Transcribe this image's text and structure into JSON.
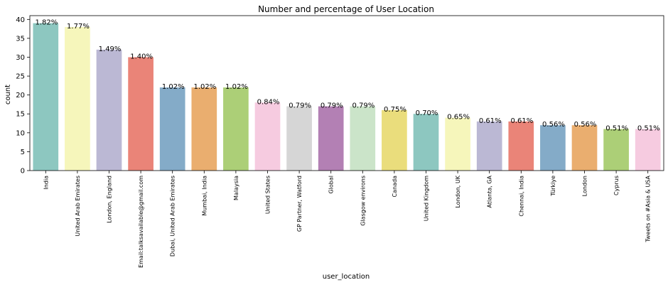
{
  "chart_data": {
    "type": "bar",
    "title": "Number and percentage of User Location",
    "xlabel": "user_location",
    "ylabel": "count",
    "ylim": [
      0,
      41
    ],
    "yticks": [
      0,
      5,
      10,
      15,
      20,
      25,
      30,
      35,
      40
    ],
    "grid": false,
    "legend": "none",
    "categories": [
      "India",
      "United Arab Emirates",
      "London, England",
      "Email:talksavailable@gmail.com",
      "Dubai, United Arab Emirates",
      "Mumbai, India",
      "Malaysia",
      "United States",
      "GP Partner, Watford",
      "Global",
      "Glasgow environs",
      "Canada",
      "United Kingdom",
      "London, UK",
      "Atlanta, GA",
      "Chennai, India",
      "Türkiye",
      "London",
      "Cyprus",
      "Tweets on #Asia & USA"
    ],
    "values": [
      39,
      38,
      32,
      30,
      22,
      22,
      22,
      18,
      17,
      17,
      17,
      16,
      15,
      14,
      13,
      13,
      12,
      12,
      11,
      11
    ],
    "data_labels": [
      "1.82%",
      "1.77%",
      "1.49%",
      "1.40%",
      "1.02%",
      "1.02%",
      "1.02%",
      "0.84%",
      "0.79%",
      "0.79%",
      "0.79%",
      "0.75%",
      "0.70%",
      "0.65%",
      "0.61%",
      "0.61%",
      "0.56%",
      "0.56%",
      "0.51%",
      "0.51%"
    ],
    "colors": [
      "#8dc7c0",
      "#f6f6bb",
      "#bbb8d4",
      "#ea8478",
      "#84abc8",
      "#eaae6f",
      "#accf77",
      "#f6cbe0",
      "#d6d6d6",
      "#b380b4",
      "#cbe4c9",
      "#eadd7c",
      "#8dc7c0",
      "#f6f6bb",
      "#bbb8d4",
      "#ea8478",
      "#84abc8",
      "#eaae6f",
      "#accf77",
      "#f6cbe0"
    ]
  }
}
